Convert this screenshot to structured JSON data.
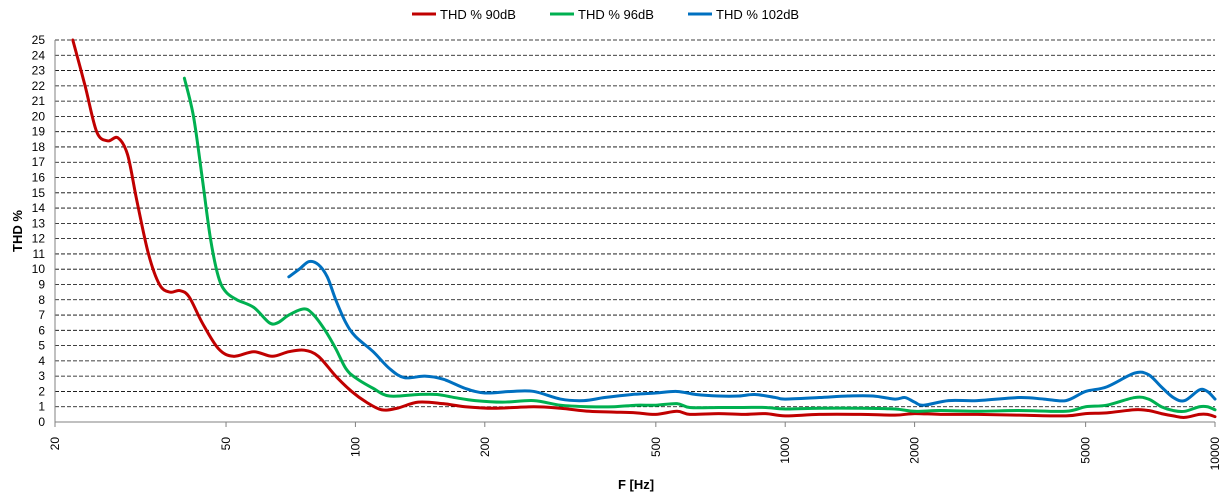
{
  "chart_data": {
    "type": "line",
    "xlabel": "F [Hz]",
    "ylabel": "THD %",
    "x_scale": "log",
    "xlim": [
      20,
      10000
    ],
    "ylim": [
      0,
      25
    ],
    "x_ticks": [
      20,
      50,
      100,
      200,
      500,
      1000,
      2000,
      5000,
      10000
    ],
    "x_tick_labels": [
      "20",
      "50",
      "100",
      "200",
      "500",
      "1000",
      "2000",
      "5000",
      "10000"
    ],
    "y_ticks": [
      "0",
      "1",
      "2",
      "3",
      "4",
      "5",
      "6",
      "7",
      "8",
      "9",
      "10",
      "11",
      "12",
      "13",
      "14",
      "15",
      "16",
      "17",
      "18",
      "19",
      "20",
      "21",
      "22",
      "23",
      "24",
      "25"
    ],
    "grid": "horizontal dashed",
    "legend_position": "top",
    "series": [
      {
        "name": "THD % 90dB",
        "color": "#C00000",
        "points": [
          [
            22,
            25
          ],
          [
            23.5,
            22
          ],
          [
            25,
            19
          ],
          [
            26.5,
            18.4
          ],
          [
            28,
            18.6
          ],
          [
            29.5,
            17.5
          ],
          [
            31,
            14.5
          ],
          [
            33,
            11
          ],
          [
            35,
            9
          ],
          [
            37,
            8.5
          ],
          [
            39,
            8.6
          ],
          [
            41,
            8.2
          ],
          [
            44,
            6.5
          ],
          [
            48,
            4.8
          ],
          [
            52,
            4.3
          ],
          [
            58,
            4.6
          ],
          [
            64,
            4.3
          ],
          [
            70,
            4.6
          ],
          [
            76,
            4.7
          ],
          [
            82,
            4.3
          ],
          [
            90,
            3
          ],
          [
            98,
            2
          ],
          [
            106,
            1.3
          ],
          [
            115,
            0.8
          ],
          [
            125,
            0.9
          ],
          [
            140,
            1.3
          ],
          [
            160,
            1.2
          ],
          [
            180,
            1.0
          ],
          [
            210,
            0.9
          ],
          [
            260,
            1.0
          ],
          [
            300,
            0.9
          ],
          [
            350,
            0.7
          ],
          [
            400,
            0.65
          ],
          [
            450,
            0.6
          ],
          [
            500,
            0.5
          ],
          [
            560,
            0.7
          ],
          [
            600,
            0.5
          ],
          [
            700,
            0.55
          ],
          [
            800,
            0.5
          ],
          [
            900,
            0.55
          ],
          [
            1000,
            0.4
          ],
          [
            1200,
            0.5
          ],
          [
            1500,
            0.5
          ],
          [
            1800,
            0.45
          ],
          [
            2000,
            0.55
          ],
          [
            2300,
            0.5
          ],
          [
            2800,
            0.5
          ],
          [
            3500,
            0.45
          ],
          [
            4500,
            0.4
          ],
          [
            5000,
            0.55
          ],
          [
            5600,
            0.6
          ],
          [
            6500,
            0.8
          ],
          [
            7000,
            0.75
          ],
          [
            7500,
            0.55
          ],
          [
            8000,
            0.4
          ],
          [
            8500,
            0.3
          ],
          [
            9200,
            0.5
          ],
          [
            9600,
            0.5
          ],
          [
            10000,
            0.35
          ]
        ]
      },
      {
        "name": "THD % 96dB",
        "color": "#00B050",
        "points": [
          [
            40,
            22.5
          ],
          [
            42,
            20
          ],
          [
            44,
            16
          ],
          [
            46,
            12
          ],
          [
            48,
            9.5
          ],
          [
            50,
            8.5
          ],
          [
            53,
            8
          ],
          [
            58,
            7.5
          ],
          [
            63,
            6.5
          ],
          [
            66,
            6.5
          ],
          [
            70,
            7
          ],
          [
            76,
            7.4
          ],
          [
            80,
            7
          ],
          [
            85,
            6
          ],
          [
            90,
            4.8
          ],
          [
            95,
            3.5
          ],
          [
            100,
            2.9
          ],
          [
            110,
            2.2
          ],
          [
            120,
            1.7
          ],
          [
            140,
            1.8
          ],
          [
            155,
            1.8
          ],
          [
            170,
            1.6
          ],
          [
            190,
            1.4
          ],
          [
            220,
            1.3
          ],
          [
            260,
            1.4
          ],
          [
            300,
            1.1
          ],
          [
            350,
            1.0
          ],
          [
            400,
            1.0
          ],
          [
            450,
            1.1
          ],
          [
            500,
            1.1
          ],
          [
            560,
            1.2
          ],
          [
            600,
            0.95
          ],
          [
            700,
            0.95
          ],
          [
            800,
            0.95
          ],
          [
            900,
            0.95
          ],
          [
            1000,
            0.85
          ],
          [
            1200,
            0.9
          ],
          [
            1500,
            0.9
          ],
          [
            1800,
            0.85
          ],
          [
            2000,
            0.7
          ],
          [
            2300,
            0.75
          ],
          [
            2800,
            0.7
          ],
          [
            3500,
            0.75
          ],
          [
            4500,
            0.7
          ],
          [
            5000,
            1.0
          ],
          [
            5600,
            1.1
          ],
          [
            6500,
            1.6
          ],
          [
            7000,
            1.5
          ],
          [
            7500,
            1.0
          ],
          [
            8000,
            0.75
          ],
          [
            8500,
            0.7
          ],
          [
            9200,
            1.0
          ],
          [
            9600,
            1.0
          ],
          [
            10000,
            0.8
          ]
        ]
      },
      {
        "name": "THD % 102dB",
        "color": "#0070C0",
        "points": [
          [
            70,
            9.5
          ],
          [
            74,
            10
          ],
          [
            78,
            10.5
          ],
          [
            82,
            10.3
          ],
          [
            86,
            9.5
          ],
          [
            90,
            8
          ],
          [
            95,
            6.5
          ],
          [
            100,
            5.6
          ],
          [
            110,
            4.6
          ],
          [
            120,
            3.5
          ],
          [
            130,
            2.9
          ],
          [
            145,
            3.0
          ],
          [
            160,
            2.8
          ],
          [
            180,
            2.2
          ],
          [
            200,
            1.9
          ],
          [
            230,
            2.0
          ],
          [
            260,
            2.0
          ],
          [
            300,
            1.5
          ],
          [
            340,
            1.4
          ],
          [
            380,
            1.6
          ],
          [
            440,
            1.8
          ],
          [
            500,
            1.9
          ],
          [
            560,
            2.0
          ],
          [
            620,
            1.8
          ],
          [
            700,
            1.7
          ],
          [
            780,
            1.7
          ],
          [
            850,
            1.8
          ],
          [
            950,
            1.6
          ],
          [
            1000,
            1.5
          ],
          [
            1200,
            1.6
          ],
          [
            1400,
            1.7
          ],
          [
            1600,
            1.7
          ],
          [
            1800,
            1.5
          ],
          [
            1900,
            1.6
          ],
          [
            2000,
            1.3
          ],
          [
            2100,
            1.1
          ],
          [
            2400,
            1.4
          ],
          [
            2800,
            1.4
          ],
          [
            3500,
            1.6
          ],
          [
            4000,
            1.5
          ],
          [
            4500,
            1.4
          ],
          [
            5000,
            2.0
          ],
          [
            5600,
            2.3
          ],
          [
            6500,
            3.2
          ],
          [
            7000,
            3.1
          ],
          [
            7500,
            2.3
          ],
          [
            8000,
            1.6
          ],
          [
            8500,
            1.4
          ],
          [
            9200,
            2.1
          ],
          [
            9600,
            2.0
          ],
          [
            10000,
            1.5
          ]
        ]
      }
    ]
  }
}
